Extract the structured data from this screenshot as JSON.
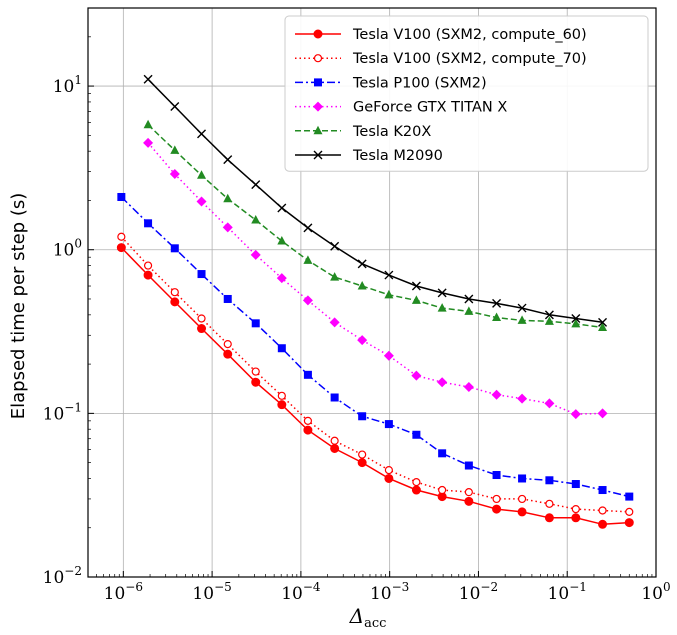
{
  "chart_data": {
    "type": "line",
    "title": "",
    "xlabel": "Δ",
    "xlabel_sub": "acc",
    "ylabel": "Elapsed time per step (s)",
    "xscale": "log",
    "yscale": "log",
    "xlim": [
      4e-07,
      1
    ],
    "ylim": [
      0.01,
      30
    ],
    "grid": true,
    "legend_position": "top-right",
    "x_ticks": [
      {
        "base": "10",
        "exp": "−6"
      },
      {
        "base": "10",
        "exp": "−5"
      },
      {
        "base": "10",
        "exp": "−4"
      },
      {
        "base": "10",
        "exp": "−3"
      },
      {
        "base": "10",
        "exp": "−2"
      },
      {
        "base": "10",
        "exp": "−1"
      },
      {
        "base": "10",
        "exp": "0"
      }
    ],
    "y_ticks": [
      {
        "base": "10",
        "exp": "−2"
      },
      {
        "base": "10",
        "exp": "−1"
      },
      {
        "base": "10",
        "exp": "0"
      },
      {
        "base": "10",
        "exp": "1"
      }
    ],
    "series": [
      {
        "name": "Tesla V100 (SXM2, compute_60)",
        "color": "#ff0000",
        "dash": "solid",
        "marker": "circle-filled",
        "x": [
          9.5e-07,
          1.9e-06,
          3.8e-06,
          7.6e-06,
          1.5e-05,
          3.1e-05,
          6.1e-05,
          0.00012,
          0.00024,
          0.00049,
          0.00098,
          0.002,
          0.0039,
          0.0078,
          0.016,
          0.031,
          0.063,
          0.125,
          0.25,
          0.5
        ],
        "y": [
          1.03,
          0.7,
          0.48,
          0.33,
          0.23,
          0.155,
          0.113,
          0.079,
          0.061,
          0.05,
          0.04,
          0.034,
          0.031,
          0.029,
          0.026,
          0.025,
          0.023,
          0.023,
          0.021,
          0.0215
        ]
      },
      {
        "name": "Tesla V100 (SXM2, compute_70)",
        "color": "#ff0000",
        "dash": "dotted",
        "marker": "circle-open",
        "x": [
          9.5e-07,
          1.9e-06,
          3.8e-06,
          7.6e-06,
          1.5e-05,
          3.1e-05,
          6.1e-05,
          0.00012,
          0.00024,
          0.00049,
          0.00098,
          0.002,
          0.0039,
          0.0078,
          0.016,
          0.031,
          0.063,
          0.125,
          0.25,
          0.5
        ],
        "y": [
          1.2,
          0.8,
          0.55,
          0.38,
          0.265,
          0.18,
          0.128,
          0.09,
          0.068,
          0.056,
          0.045,
          0.038,
          0.034,
          0.033,
          0.03,
          0.03,
          0.028,
          0.026,
          0.0255,
          0.025
        ]
      },
      {
        "name": "Tesla P100 (SXM2)",
        "color": "#0000ff",
        "dash": "dashdot",
        "marker": "square",
        "x": [
          9.5e-07,
          1.9e-06,
          3.8e-06,
          7.6e-06,
          1.5e-05,
          3.1e-05,
          6.1e-05,
          0.00012,
          0.00024,
          0.00049,
          0.00098,
          0.002,
          0.0039,
          0.0078,
          0.016,
          0.031,
          0.063,
          0.125,
          0.25,
          0.5
        ],
        "y": [
          2.1,
          1.45,
          1.02,
          0.71,
          0.5,
          0.355,
          0.25,
          0.172,
          0.125,
          0.096,
          0.086,
          0.074,
          0.057,
          0.048,
          0.042,
          0.04,
          0.039,
          0.037,
          0.034,
          0.031
        ]
      },
      {
        "name": "GeForce GTX TITAN X",
        "color": "#ff00ff",
        "dash": "dotted",
        "marker": "diamond",
        "x": [
          1.9e-06,
          3.8e-06,
          7.6e-06,
          1.5e-05,
          3.1e-05,
          6.1e-05,
          0.00012,
          0.00024,
          0.00049,
          0.00098,
          0.002,
          0.0039,
          0.0078,
          0.016,
          0.031,
          0.063,
          0.125,
          0.25
        ],
        "y": [
          4.5,
          2.9,
          1.97,
          1.37,
          0.93,
          0.67,
          0.49,
          0.36,
          0.28,
          0.225,
          0.17,
          0.155,
          0.145,
          0.13,
          0.123,
          0.115,
          0.099,
          0.1
        ]
      },
      {
        "name": "Tesla K20X",
        "color": "#228b22",
        "dash": "dashed",
        "marker": "triangle",
        "x": [
          1.9e-06,
          3.8e-06,
          7.6e-06,
          1.5e-05,
          3.1e-05,
          6.1e-05,
          0.00012,
          0.00024,
          0.00049,
          0.00098,
          0.002,
          0.0039,
          0.0078,
          0.016,
          0.031,
          0.063,
          0.125,
          0.25
        ],
        "y": [
          5.8,
          4.05,
          2.85,
          2.05,
          1.52,
          1.13,
          0.86,
          0.68,
          0.6,
          0.53,
          0.49,
          0.44,
          0.42,
          0.385,
          0.37,
          0.365,
          0.352,
          0.335
        ]
      },
      {
        "name": "Tesla M2090",
        "color": "#000000",
        "dash": "solid",
        "marker": "x",
        "x": [
          1.9e-06,
          3.8e-06,
          7.6e-06,
          1.5e-05,
          3.1e-05,
          6.1e-05,
          0.00012,
          0.00024,
          0.00049,
          0.00098,
          0.002,
          0.0039,
          0.0078,
          0.016,
          0.031,
          0.063,
          0.125,
          0.25
        ],
        "y": [
          11.0,
          7.5,
          5.1,
          3.55,
          2.5,
          1.8,
          1.36,
          1.05,
          0.82,
          0.7,
          0.6,
          0.545,
          0.5,
          0.47,
          0.44,
          0.4,
          0.38,
          0.36
        ]
      }
    ]
  }
}
